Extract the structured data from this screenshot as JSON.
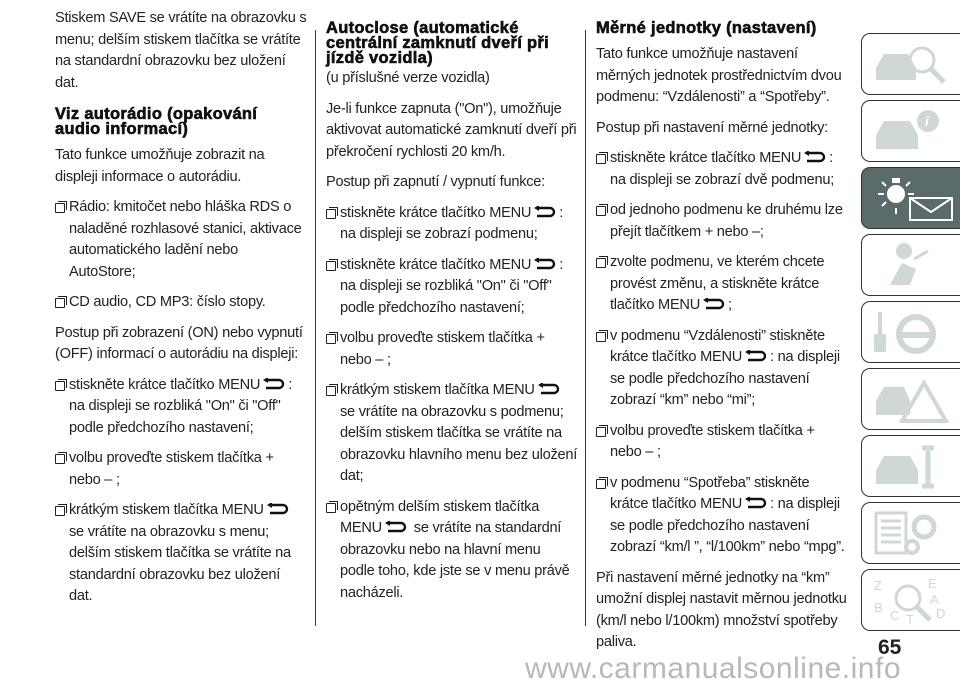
{
  "col1": {
    "intro": "Stiskem SAVE se vrátíte na obrazovku s menu; delším stiskem tlačítka se vrátíte na standardní obrazovku bez uložení dat.",
    "heading": "Viz autorádio (opakování audio informací)",
    "p1": "Tato funkce umožňuje zobrazit na displeji informace o autorádiu.",
    "items1": [
      {
        "segments": [
          "Rádio: kmitočet nebo hláška RDS o naladěné rozhlasové stanici, aktivace automatického ladění nebo AutoStore;"
        ]
      },
      {
        "segments": [
          "CD audio, CD MP3: číslo stopy."
        ]
      }
    ],
    "p2": "Postup při zobrazení (ON) nebo vypnutí (OFF) informací o autorádiu na displeji:",
    "items2": [
      {
        "segments": [
          "stiskněte krátce tlačítko MENU",
          ": na displeji se rozbliká \"On\" či \"Off\" podle předchozího nastavení;"
        ]
      },
      {
        "segments": [
          "volbu proveďte stiskem tlačítka + nebo – ;"
        ]
      },
      {
        "segments": [
          "krátkým stiskem tlačítka MENU",
          " se vrátíte na obrazovku s menu; delším stiskem tlačítka se vrátíte na standardní obrazovku bez uložení dat."
        ]
      }
    ]
  },
  "col2": {
    "heading": "Autoclose (automatické centrální zamknutí dveří při jízdě vozidla)",
    "subheading": "(u příslušné verze vozidla)",
    "p1": "Je-li funkce zapnuta (\"On\"), umožňuje aktivovat automatické zamknutí dveří při překročení rychlosti 20 km/h.",
    "p2": "Postup při zapnutí / vypnutí funkce:",
    "items": [
      {
        "segments": [
          "stiskněte krátce tlačítko MENU",
          ": na displeji se zobrazí podmenu;"
        ]
      },
      {
        "segments": [
          "stiskněte krátce tlačítko MENU",
          ": na displeji se rozbliká \"On\" či \"Off\" podle předchozího nastavení;"
        ]
      },
      {
        "segments": [
          "volbu proveďte stiskem tlačítka + nebo – ;"
        ]
      },
      {
        "segments": [
          "krátkým stiskem tlačítka MENU",
          " se vrátíte na obrazovku s podmenu; delším stiskem tlačítka se vrátíte na obrazovku hlavního menu bez uložení dat;"
        ]
      },
      {
        "segments": [
          "opětným delším stiskem tlačítka MENU",
          " se vrátíte na standardní obrazovku nebo na hlavní menu podle toho, kde jste se v menu právě nacházeli."
        ]
      }
    ]
  },
  "col3": {
    "heading": "Měrné jednotky (nastavení)",
    "p1": "Tato funkce umožňuje nastavení měrných jednotek prostřednictvím dvou podmenu: “Vzdálenosti” a “Spotřeby”.",
    "p2": "Postup při nastavení měrné jednotky:",
    "items": [
      {
        "segments": [
          "stiskněte krátce tlačítko MENU",
          ": na displeji se zobrazí dvě podmenu;"
        ]
      },
      {
        "segments": [
          "od jednoho podmenu ke druhému lze přejít tlačítkem + nebo –;"
        ]
      },
      {
        "segments": [
          "zvolte podmenu, ve kterém chcete provést změnu, a stiskněte krátce tlačítko MENU",
          ";"
        ]
      },
      {
        "segments": [
          "v podmenu “Vzdálenosti” stiskněte krátce tlačítko MENU",
          ": na displeji se podle předchozího nastavení zobrazí “km” nebo “mi”;"
        ]
      },
      {
        "segments": [
          "volbu proveďte stiskem tlačítka + nebo – ;"
        ]
      },
      {
        "segments": [
          "v podmenu “Spotřeba” stiskněte krátce tlačítko MENU",
          ": na displeji se podle předchozího nastavení zobrazí “km/l ”, “l/100km” nebo “mpg”."
        ]
      }
    ],
    "p3": "Při nastavení měrné jednotky na “km” umožní displej nastavit měrnou jednotku (km/l nebo l/100km) množství spotřeby paliva."
  },
  "tabs": [
    {
      "icon": "car-search-icon"
    },
    {
      "icon": "car-info-icon"
    },
    {
      "icon": "warning-light-message-icon",
      "active": true
    },
    {
      "icon": "airbag-seat-icon"
    },
    {
      "icon": "key-steering-wheel-icon"
    },
    {
      "icon": "car-breakdown-triangle-icon"
    },
    {
      "icon": "car-wrench-icon"
    },
    {
      "icon": "specs-gear-icon"
    },
    {
      "icon": "alphabetical-index-icon",
      "letters": "ZEBACDT"
    }
  ],
  "colors": {
    "tab_active": "#5b6b6b",
    "tab_icon": "#cfd8d6",
    "watermark": "#b8b8b8"
  },
  "page_number": "65",
  "watermark": "www.carmanualsonline.info"
}
